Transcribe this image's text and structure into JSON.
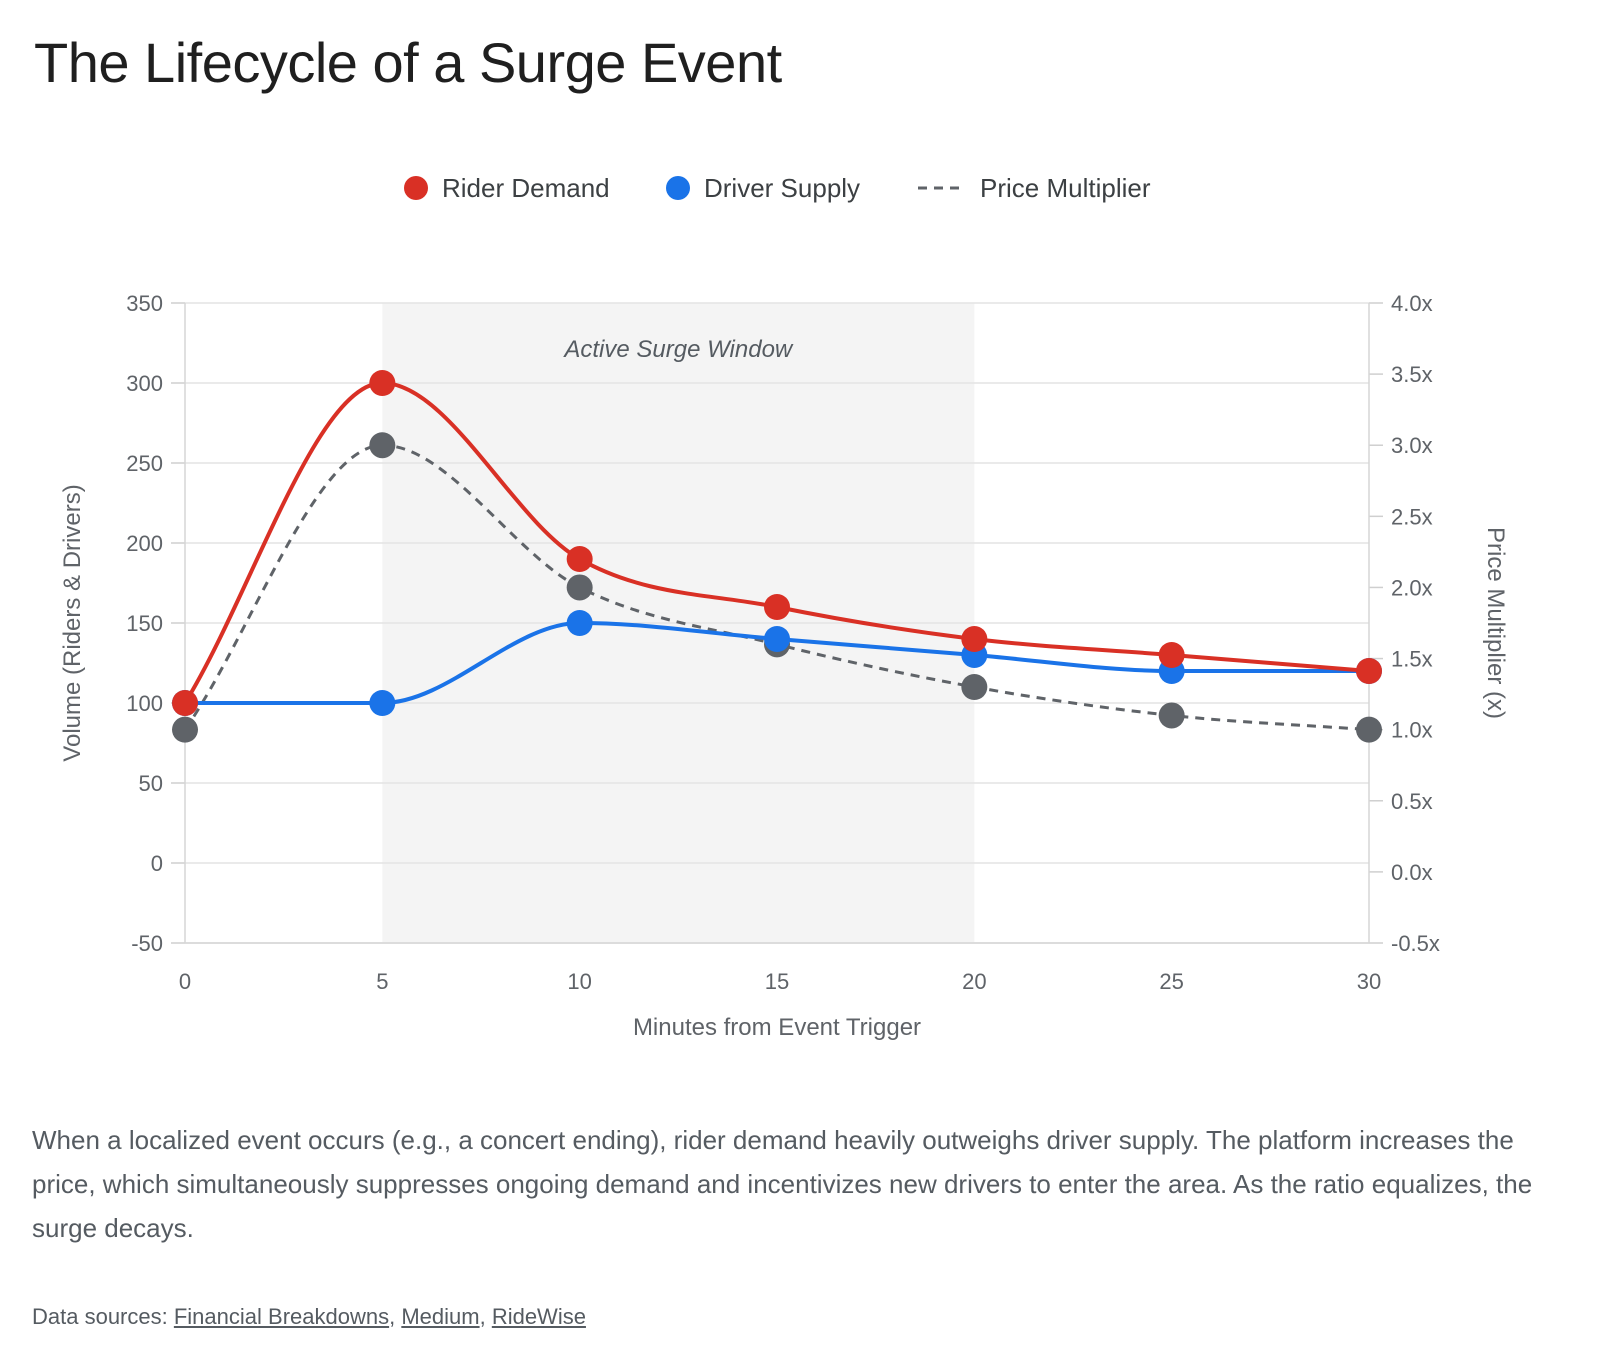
{
  "title": "The Lifecycle of a Surge Event",
  "caption": "When a localized event occurs (e.g., a concert ending), rider demand heavily outweighs driver supply. The platform increases the price, which simultaneously suppresses ongoing demand and incentivizes new drivers to enter the area. As the ratio equalizes, the surge decays.",
  "sources": {
    "label": "Data sources:",
    "links": [
      "Financial Breakdowns",
      "Medium",
      "RideWise"
    ]
  },
  "chart_data": {
    "type": "line",
    "xlabel": "Minutes from Event Trigger",
    "ylabel": "Volume (Riders & Drivers)",
    "y2label": "Price Multiplier (x)",
    "x": [
      0,
      5,
      10,
      15,
      20,
      25,
      30
    ],
    "x_ticks": [
      "0",
      "5",
      "10",
      "15",
      "20",
      "25",
      "30"
    ],
    "xlim": [
      0,
      30
    ],
    "ylim": [
      -50,
      350
    ],
    "y_ticks": [
      "350",
      "300",
      "250",
      "200",
      "150",
      "100",
      "50",
      "0",
      "-50"
    ],
    "y2lim": [
      -0.5,
      4.0
    ],
    "y2_ticks": [
      "4.0x",
      "3.5x",
      "3.0x",
      "2.5x",
      "2.0x",
      "1.5x",
      "1.0x",
      "0.5x",
      "0.0x",
      "-0.5x"
    ],
    "grid": true,
    "legend_position": "top-center",
    "series": [
      {
        "name": "Rider Demand",
        "axis": "left",
        "color": "#d93025",
        "style": "solid",
        "values": [
          100,
          300,
          190,
          160,
          140,
          130,
          120
        ]
      },
      {
        "name": "Driver Supply",
        "axis": "left",
        "color": "#1a73e8",
        "style": "solid",
        "values": [
          100,
          100,
          150,
          140,
          130,
          120,
          120
        ]
      },
      {
        "name": "Price Multiplier",
        "axis": "right",
        "color": "#5f6368",
        "style": "dashed",
        "values": [
          1.0,
          3.0,
          2.0,
          1.6,
          1.3,
          1.1,
          1.0
        ]
      }
    ],
    "annotations": [
      {
        "type": "band",
        "x_start": 5,
        "x_end": 20,
        "label": "Active Surge Window"
      }
    ]
  }
}
